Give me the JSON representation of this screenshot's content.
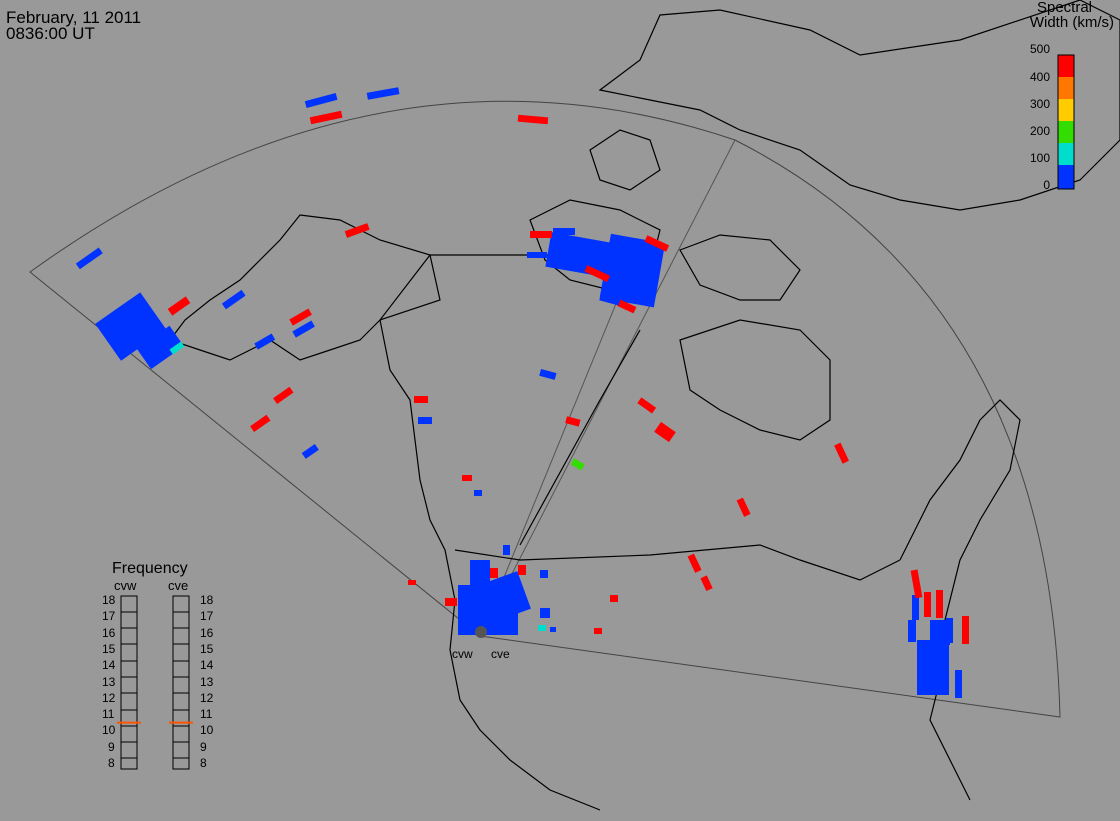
{
  "title": {
    "date": "February, 11 2011",
    "time": "0836:00 UT"
  },
  "colorbar": {
    "title_line1": "Spectral",
    "title_line2": "Width (km/s)",
    "ticks": [
      "500",
      "400",
      "300",
      "200",
      "100",
      "0"
    ],
    "colors": [
      "#ff0000",
      "#ff7700",
      "#ffcc00",
      "#33dd00",
      "#00ddcc",
      "#0033ff"
    ]
  },
  "frequency_panel": {
    "title": "Frequency",
    "radars": [
      "cvw",
      "cve"
    ],
    "ticks": [
      "18",
      "17",
      "16",
      "15",
      "14",
      "13",
      "12",
      "11",
      "10",
      "9",
      "8"
    ],
    "values_mhz": [
      10.6,
      10.6
    ],
    "indicator_color": "#ff5500"
  },
  "radar_labels": [
    "cvw",
    "cve"
  ]
}
